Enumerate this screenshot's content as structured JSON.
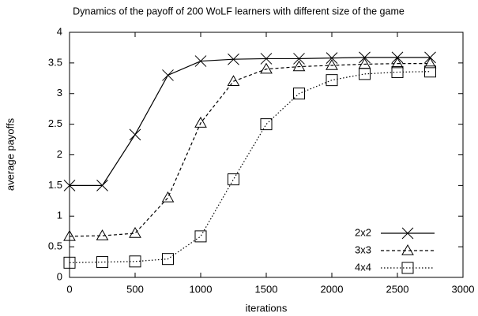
{
  "chart_data": {
    "type": "line",
    "title": "Dynamics of the payoff of 200 WoLF learners with different size of the game",
    "x_label": "iterations",
    "y_label": "average payoffs",
    "x": [
      0,
      250,
      500,
      750,
      1000,
      1250,
      1500,
      1750,
      2000,
      2250,
      2500,
      2750
    ],
    "series": [
      {
        "name": "2x2",
        "color": "#000000",
        "line_style": "solid",
        "marker": "x",
        "values": [
          1.5,
          1.5,
          2.33,
          3.3,
          3.53,
          3.56,
          3.57,
          3.57,
          3.58,
          3.59,
          3.59,
          3.59
        ]
      },
      {
        "name": "3x3",
        "color": "#000000",
        "line_style": "dashed",
        "marker": "triangle",
        "values": [
          0.67,
          0.68,
          0.72,
          1.3,
          2.52,
          3.2,
          3.4,
          3.44,
          3.46,
          3.48,
          3.49,
          3.49
        ]
      },
      {
        "name": "4x4",
        "color": "#000000",
        "line_style": "dotted",
        "marker": "square",
        "values": [
          0.24,
          0.25,
          0.26,
          0.3,
          0.67,
          1.6,
          2.5,
          3.0,
          3.22,
          3.32,
          3.35,
          3.36
        ]
      }
    ],
    "xlim": [
      0,
      3000
    ],
    "xticks": [
      0,
      500,
      1000,
      1500,
      2000,
      2500,
      3000
    ],
    "ylim": [
      0,
      4
    ],
    "yticks": [
      0,
      0.5,
      1,
      1.5,
      2,
      2.5,
      3,
      3.5,
      4
    ],
    "grid": false,
    "legend": "lower right"
  }
}
